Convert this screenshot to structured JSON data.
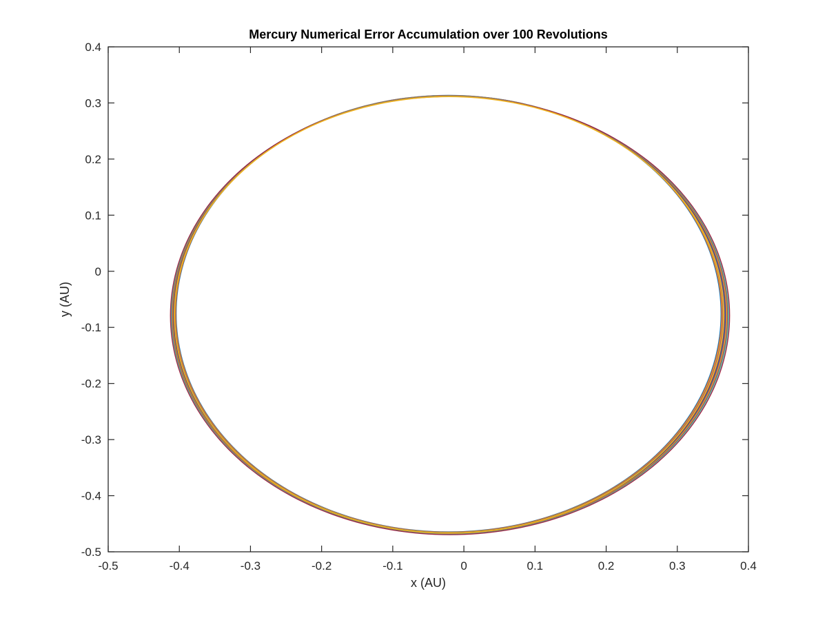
{
  "chart_data": {
    "type": "line",
    "title": "Mercury Numerical Error Accumulation over 100 Revolutions",
    "xlabel": "x (AU)",
    "ylabel": "y (AU)",
    "xlim": [
      -0.5,
      0.4
    ],
    "ylim": [
      -0.5,
      0.4
    ],
    "xticks": [
      -0.5,
      -0.4,
      -0.3,
      -0.2,
      -0.1,
      0,
      0.1,
      0.2,
      0.3,
      0.4
    ],
    "yticks": [
      -0.5,
      -0.4,
      -0.3,
      -0.2,
      -0.1,
      0,
      0.1,
      0.2,
      0.3,
      0.4
    ],
    "xtick_labels": [
      "-0.5",
      "-0.4",
      "-0.3",
      "-0.2",
      "-0.1",
      "0",
      "0.1",
      "0.2",
      "0.3",
      "0.4"
    ],
    "ytick_labels": [
      "-0.5",
      "-0.4",
      "-0.3",
      "-0.2",
      "-0.1",
      "0",
      "0.1",
      "0.2",
      "0.3",
      "0.4"
    ],
    "grid": false,
    "legend": "none",
    "orbit": {
      "revolutions": 100,
      "center_x": -0.0215,
      "center_y": -0.0755,
      "semi_axis_x": 0.383,
      "semi_axis_y": 0.389,
      "right_edge_drift": 0.012,
      "left_edge_drift": -0.008,
      "center_y_drift": -0.0035
    },
    "series_colors": [
      "#0072BD",
      "#D95319",
      "#EDB120",
      "#7E2F8E",
      "#77AC30",
      "#4DBEEE",
      "#A2142F"
    ]
  }
}
